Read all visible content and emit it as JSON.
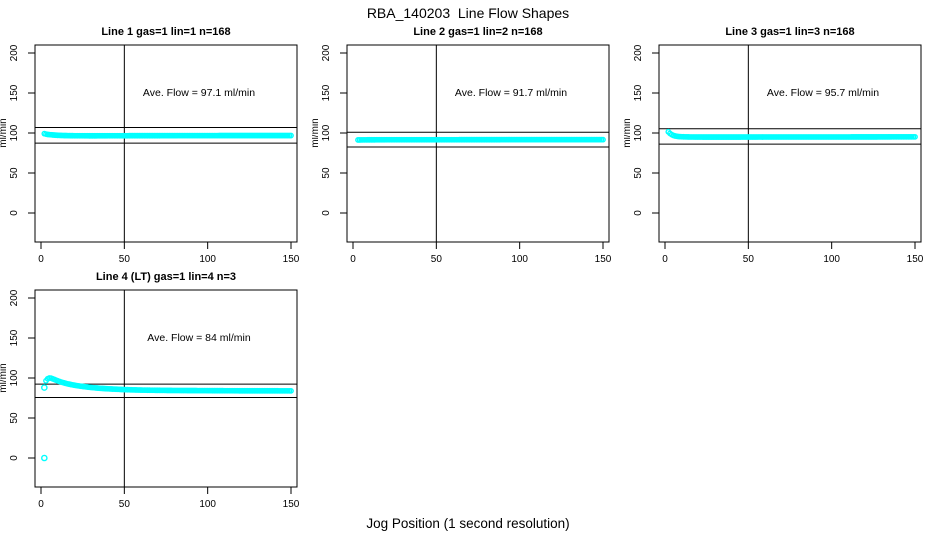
{
  "page": {
    "title": "RBA_140203  Line Flow Shapes",
    "xlabel": "Jog Position (1 second resolution)"
  },
  "chart_data": {
    "type": "scatter",
    "title": "RBA_140203  Line Flow Shapes",
    "xlabel": "Jog Position (1 second resolution)",
    "ylabel": "ml/min",
    "x_ticks": [
      0,
      50,
      100,
      150
    ],
    "y_ticks": [
      0,
      50,
      100,
      150,
      200
    ],
    "xlim": [
      -3.6,
      153.6
    ],
    "ylim": [
      -36,
      210
    ],
    "grid": false,
    "point_color": "#00ffff",
    "line_color": "#000000",
    "subplots": [
      {
        "title": "Line 1 gas=1 lin=1 n=168",
        "annotation": "Ave. Flow =  97.1  ml/min",
        "ave_flow": 97.1,
        "n": 168,
        "vline_x": 50,
        "hlines": [
          106.8,
          87.4
        ],
        "x_start": 2,
        "x_end": 150,
        "profile": [
          [
            2,
            99.2
          ],
          [
            3,
            98.6
          ],
          [
            4,
            98.2
          ],
          [
            6,
            97.8
          ],
          [
            8,
            97.4
          ],
          [
            10,
            97.1
          ],
          [
            14,
            96.8
          ],
          [
            20,
            96.6
          ],
          [
            30,
            96.5
          ],
          [
            50,
            96.6
          ],
          [
            80,
            96.7
          ],
          [
            120,
            96.8
          ],
          [
            150,
            96.8
          ]
        ],
        "extra_points": []
      },
      {
        "title": "Line 2 gas=1 lin=2 n=168",
        "annotation": "Ave. Flow =  91.7  ml/min",
        "ave_flow": 91.7,
        "n": 168,
        "vline_x": 50,
        "hlines": [
          100.9,
          82.5
        ],
        "x_start": 3,
        "x_end": 150,
        "profile": [
          [
            3,
            91.3
          ],
          [
            6,
            91.4
          ],
          [
            10,
            91.5
          ],
          [
            30,
            91.6
          ],
          [
            60,
            91.6
          ],
          [
            100,
            91.7
          ],
          [
            150,
            91.7
          ]
        ],
        "extra_points": []
      },
      {
        "title": "Line 3 gas=1 lin=3 n=168",
        "annotation": "Ave. Flow =  95.7  ml/min",
        "ave_flow": 95.7,
        "n": 168,
        "vline_x": 50,
        "hlines": [
          105.3,
          86.1
        ],
        "x_start": 2,
        "x_end": 150,
        "profile": [
          [
            2,
            101.5
          ],
          [
            3,
            99.5
          ],
          [
            4,
            98.0
          ],
          [
            5,
            97.0
          ],
          [
            6,
            96.3
          ],
          [
            8,
            95.6
          ],
          [
            10,
            95.3
          ],
          [
            15,
            95.0
          ],
          [
            30,
            94.9
          ],
          [
            60,
            95.0
          ],
          [
            100,
            95.0
          ],
          [
            150,
            95.2
          ]
        ],
        "extra_points": []
      },
      {
        "title": "Line 4 (LT) gas=1 lin=4 n=3",
        "annotation": "Ave. Flow =  84  ml/min",
        "ave_flow": 84,
        "n": 3,
        "vline_x": 50,
        "hlines": [
          92.4,
          75.6
        ],
        "x_start": 3,
        "x_end": 150,
        "profile": [
          [
            3,
            96.5
          ],
          [
            4,
            99.0
          ],
          [
            5,
            100.0
          ],
          [
            6,
            99.8
          ],
          [
            7,
            99.0
          ],
          [
            8,
            98.2
          ],
          [
            9,
            97.3
          ],
          [
            10,
            96.5
          ],
          [
            12,
            95.0
          ],
          [
            14,
            93.8
          ],
          [
            16,
            92.7
          ],
          [
            18,
            91.8
          ],
          [
            20,
            91.0
          ],
          [
            23,
            90.0
          ],
          [
            26,
            89.2
          ],
          [
            29,
            88.4
          ],
          [
            32,
            87.8
          ],
          [
            35,
            87.2
          ],
          [
            38,
            86.8
          ],
          [
            41,
            86.4
          ],
          [
            44,
            86.1
          ],
          [
            47,
            85.8
          ],
          [
            50,
            85.5
          ],
          [
            55,
            85.2
          ],
          [
            60,
            84.9
          ],
          [
            70,
            84.6
          ],
          [
            80,
            84.4
          ],
          [
            90,
            84.3
          ],
          [
            100,
            84.2
          ],
          [
            110,
            84.1
          ],
          [
            120,
            84.0
          ],
          [
            135,
            84.0
          ],
          [
            150,
            83.9
          ]
        ],
        "extra_points": [
          [
            2,
            0
          ],
          [
            2,
            88
          ]
        ]
      }
    ]
  }
}
